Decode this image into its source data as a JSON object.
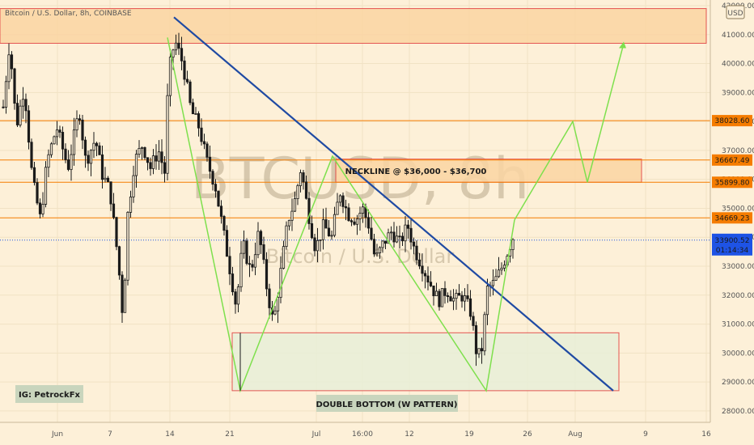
{
  "chart_data": {
    "type": "candlestick",
    "title": "Bitcoin / U.S. Dollar, 8h, COINBASE",
    "watermark": {
      "symbol": "BTCUSD, 8h",
      "name": "Bitcoin / U.S. Dollar"
    },
    "currency_badge": "USD",
    "ylim": [
      27600,
      42000
    ],
    "y_ticks": [
      28000,
      29000,
      30000,
      31000,
      32000,
      33000,
      34000,
      35000,
      36000,
      37000,
      38000,
      39000,
      40000,
      41000,
      42000
    ],
    "x_ticks": [
      "Jun",
      "7",
      "14",
      "21",
      "Jul",
      "16:00",
      "12",
      "19",
      "26",
      "Aug",
      "9",
      "16"
    ],
    "price_levels": [
      {
        "value": 38028.6,
        "label": "38028.60",
        "color": "#f57c00"
      },
      {
        "value": 36667.49,
        "label": "36667.49",
        "color": "#f57c00"
      },
      {
        "value": 35899.8,
        "label": "35899.80",
        "color": "#f57c00"
      },
      {
        "value": 34669.23,
        "label": "34669.23",
        "color": "#f57c00"
      }
    ],
    "current_price": {
      "value": 33900.52,
      "label": "33900.52",
      "countdown": "01:14:34",
      "color": "#1e53e5"
    },
    "annotations": {
      "neckline": "NECKLINE @ $36,000 - $36,700",
      "pattern": "DOUBLE BOTTOM (W PATTERN)",
      "author": "IG: PetrockFx"
    },
    "zones": [
      {
        "name": "supply",
        "from": 40700,
        "to": 41900
      },
      {
        "name": "neckline",
        "from": 35900,
        "to": 36700
      },
      {
        "name": "double-bottom",
        "from": 28700,
        "to": 30700
      }
    ],
    "trendline": {
      "from_price": 41600,
      "to_price": 28700
    },
    "w_pattern_path": [
      40900,
      28700,
      36800,
      28700,
      34600
    ],
    "projection_path": [
      38000,
      35900,
      40700
    ],
    "colors": {
      "up": "#1a1a1a",
      "down": "#1a1a1a",
      "up_body": "#1a1a1a",
      "wick": "#1a1a1a",
      "trend": "#1f4aa3",
      "pattern": "#7ee04d",
      "zone_border": "#e03a3a",
      "neckline_fill": "#fbd5a3",
      "bottom_fill": "#e8efd8",
      "supply_fill": "#fbd5a3",
      "level": "#f57c00"
    }
  }
}
